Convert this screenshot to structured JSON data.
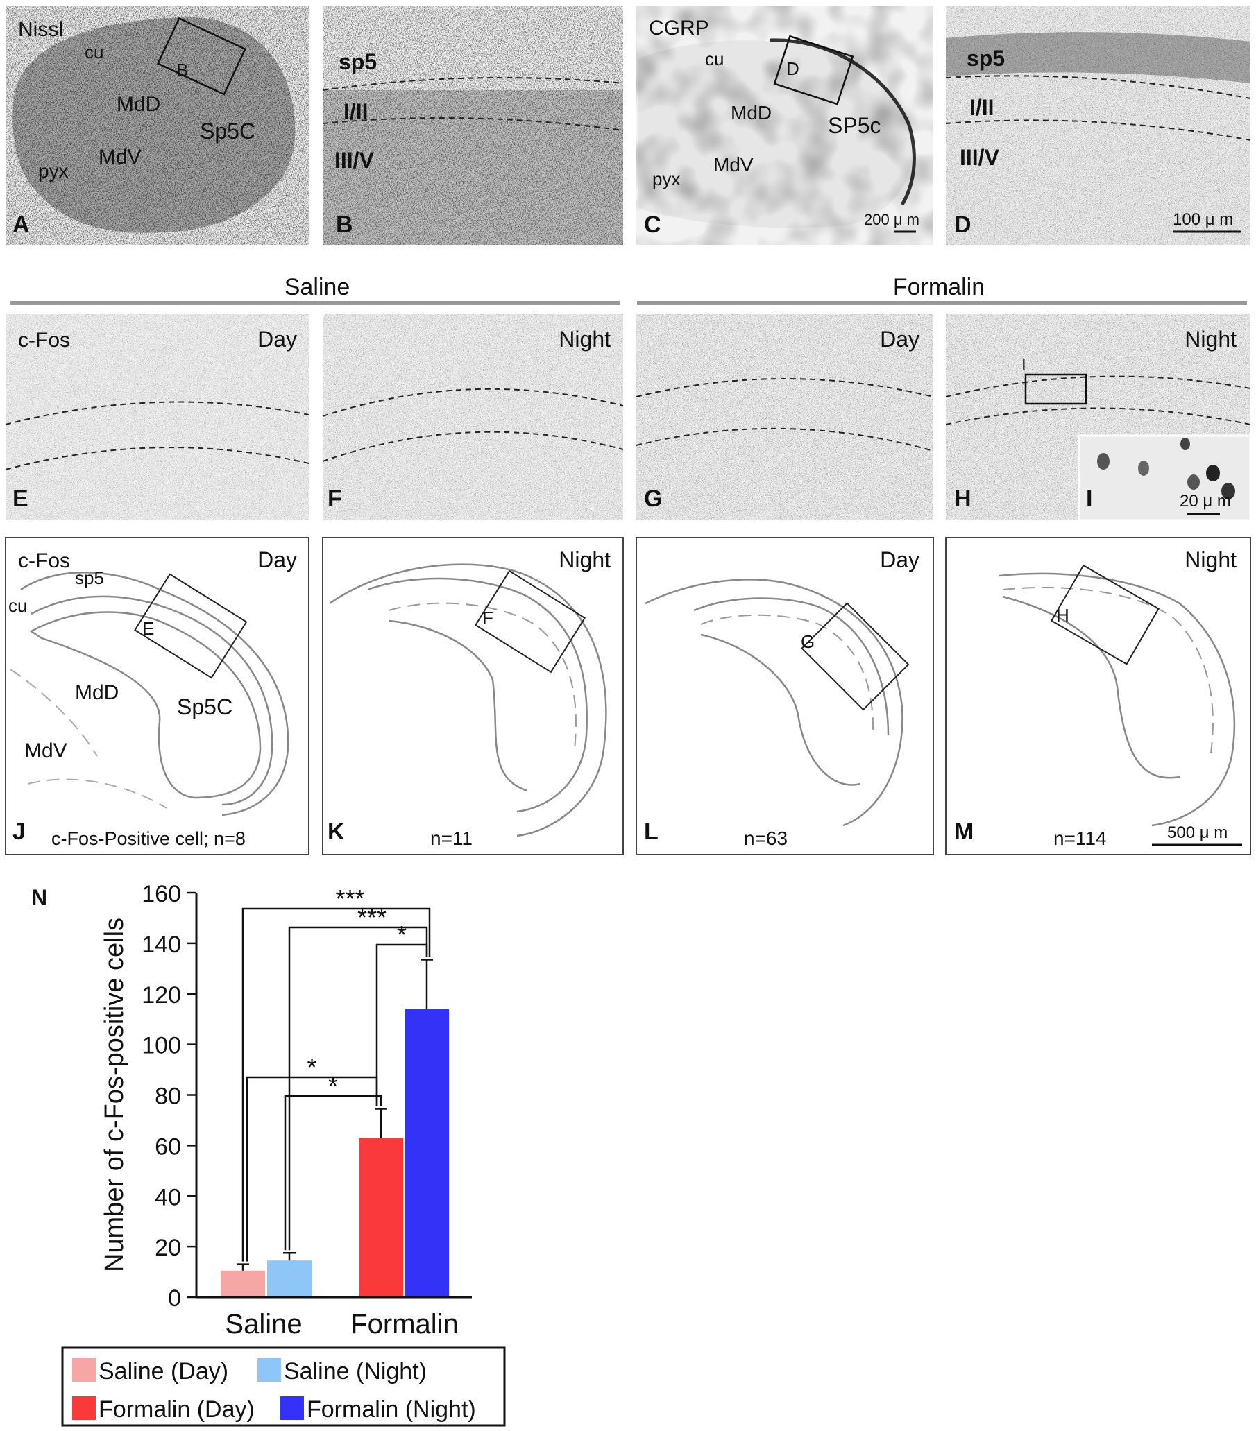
{
  "top_row": {
    "A": {
      "letter": "A",
      "stain": "Nissl",
      "regions": [
        "cu",
        "B",
        "MdD",
        "Sp5C",
        "MdV",
        "pyx"
      ]
    },
    "B": {
      "letter": "B",
      "layers": [
        "sp5",
        "I/II",
        "III/V"
      ]
    },
    "C": {
      "letter": "C",
      "stain": "CGRP",
      "regions": [
        "cu",
        "D",
        "MdD",
        "SP5c",
        "MdV",
        "pyx"
      ],
      "scale_label": "200 μ m"
    },
    "D": {
      "letter": "D",
      "layers": [
        "sp5",
        "I/II",
        "III/V"
      ],
      "scale_label": "100 μ m"
    }
  },
  "groups": {
    "saline": "Saline",
    "formalin": "Formalin"
  },
  "photo_row": {
    "E": {
      "letter": "E",
      "stain": "c-Fos",
      "time": "Day"
    },
    "F": {
      "letter": "F",
      "time": "Night"
    },
    "G": {
      "letter": "G",
      "time": "Day"
    },
    "H": {
      "letter": "H",
      "time": "Night",
      "box": "I"
    },
    "I": {
      "letter": "I",
      "scale_label": "20 μ m"
    }
  },
  "drawing_row": {
    "J": {
      "letter": "J",
      "stain": "c-Fos",
      "time": "Day",
      "regions": [
        "sp5",
        "cu",
        "E",
        "MdD",
        "Sp5C",
        "MdV"
      ],
      "count": "c-Fos-Positive cell; n=8"
    },
    "K": {
      "letter": "K",
      "time": "Night",
      "box": "F",
      "count": "n=11"
    },
    "L": {
      "letter": "L",
      "time": "Day",
      "box": "G",
      "count": "n=63"
    },
    "M": {
      "letter": "M",
      "time": "Night",
      "box": "H",
      "count": "n=114",
      "scale_label": "500 μ m"
    }
  },
  "chart_panel_letter": "N",
  "chart_data": {
    "type": "bar",
    "ylabel": "Number of c-Fos-positive cells",
    "ylim": [
      0,
      160
    ],
    "yticks": [
      0,
      20,
      40,
      60,
      80,
      100,
      120,
      140,
      160
    ],
    "groups": [
      "Saline",
      "Formalin"
    ],
    "bars": [
      {
        "name": "Saline (Day)",
        "group": "Saline",
        "value": 10.5,
        "error": 2.5,
        "color": "#f7a6a6"
      },
      {
        "name": "Saline (Night)",
        "group": "Saline",
        "value": 14.5,
        "error": 3.0,
        "color": "#8ec6f8"
      },
      {
        "name": "Formalin (Day)",
        "group": "Formalin",
        "value": 63,
        "error": 11.5,
        "color": "#fa3a3a"
      },
      {
        "name": "Formalin (Night)",
        "group": "Formalin",
        "value": 114,
        "error": 19.5,
        "color": "#3432f6"
      }
    ],
    "significance": [
      {
        "from": "Saline (Day)",
        "to": "Formalin (Night)",
        "label": "***"
      },
      {
        "from": "Saline (Night)",
        "to": "Formalin (Night)",
        "label": "***"
      },
      {
        "from": "Formalin (Day)",
        "to": "Formalin (Night)",
        "label": "*"
      },
      {
        "from": "Saline (Day)",
        "to": "Formalin (Day)",
        "label": "*"
      },
      {
        "from": "Saline (Night)",
        "to": "Formalin (Day)",
        "label": "*"
      }
    ],
    "legend": [
      "Saline (Day)",
      "Saline (Night)",
      "Formalin (Day)",
      "Formalin (Night)"
    ],
    "legend_position": "bottom"
  }
}
